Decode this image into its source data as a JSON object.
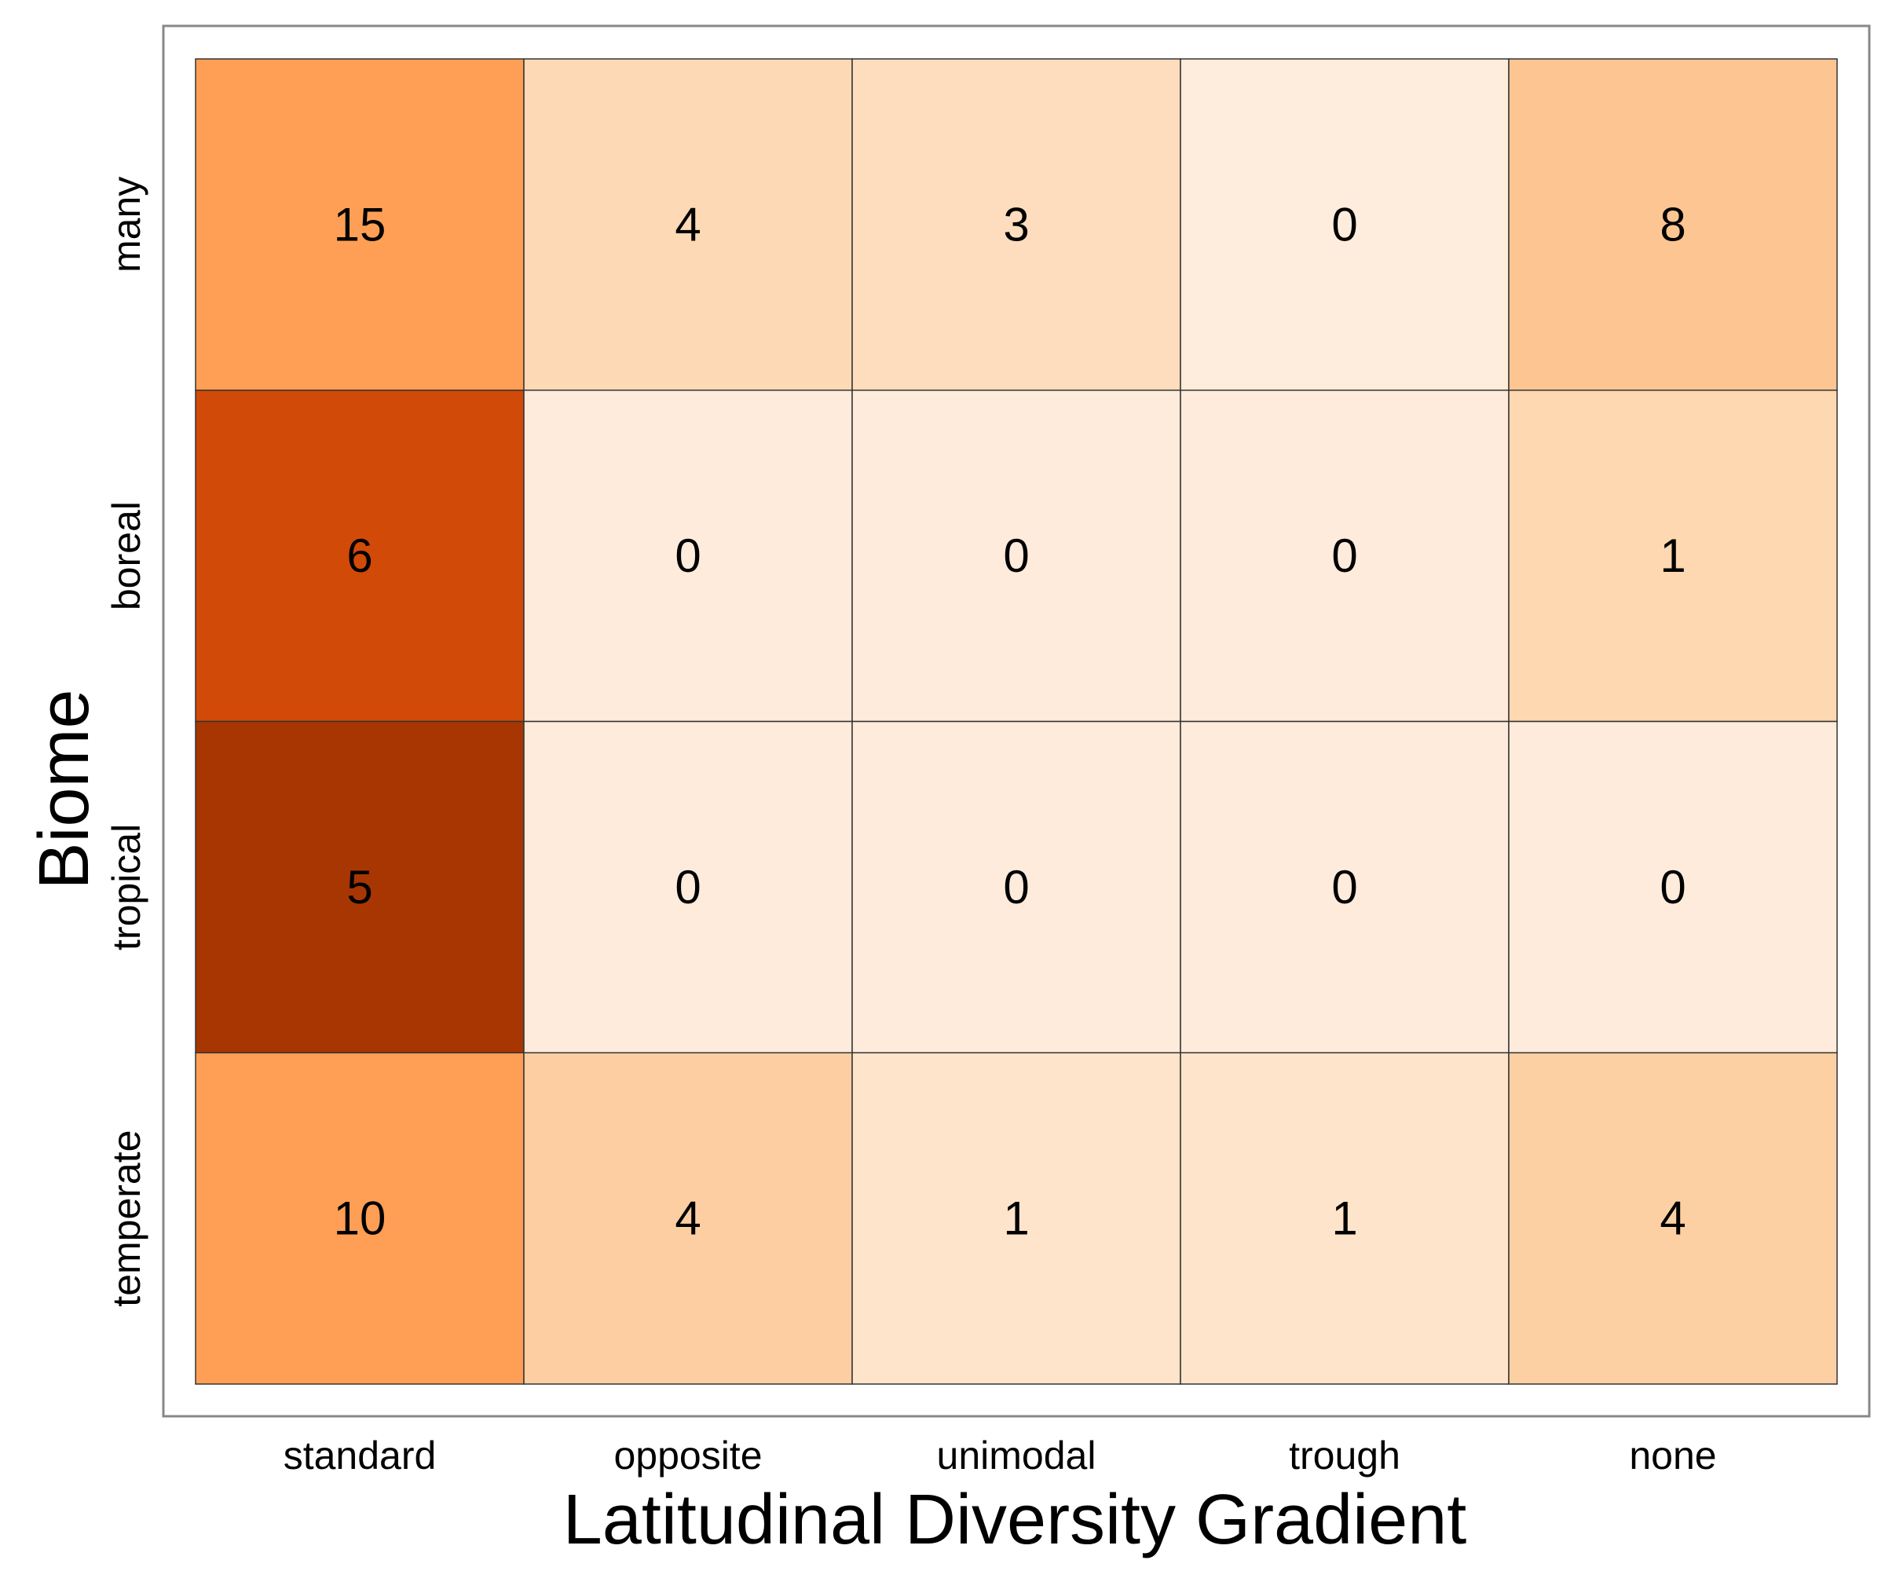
{
  "chart_data": {
    "type": "heatmap",
    "title": "",
    "xlabel": "Latitudinal Diversity Gradient",
    "ylabel": "Biome",
    "x_categories": [
      "standard",
      "opposite",
      "unimodal",
      "trough",
      "none"
    ],
    "y_categories": [
      "many",
      "boreal",
      "tropical",
      "temperate"
    ],
    "values": [
      [
        15,
        4,
        3,
        0,
        8
      ],
      [
        6,
        0,
        0,
        0,
        1
      ],
      [
        5,
        0,
        0,
        0,
        0
      ],
      [
        10,
        4,
        1,
        1,
        4
      ]
    ],
    "cell_colors": [
      [
        "#fe9f55",
        "#fdd9b5",
        "#fdddbd",
        "#feecdc",
        "#fdc591"
      ],
      [
        "#d24a08",
        "#feebdb",
        "#feebdb",
        "#feebdb",
        "#fdd8b0"
      ],
      [
        "#a73602",
        "#feebdb",
        "#feebdb",
        "#feebdb",
        "#feebdb"
      ],
      [
        "#fe9f55",
        "#fcceA1",
        "#fee4ca",
        "#fee4ca",
        "#fcd0a2"
      ]
    ],
    "legend": "none",
    "grid": false
  }
}
